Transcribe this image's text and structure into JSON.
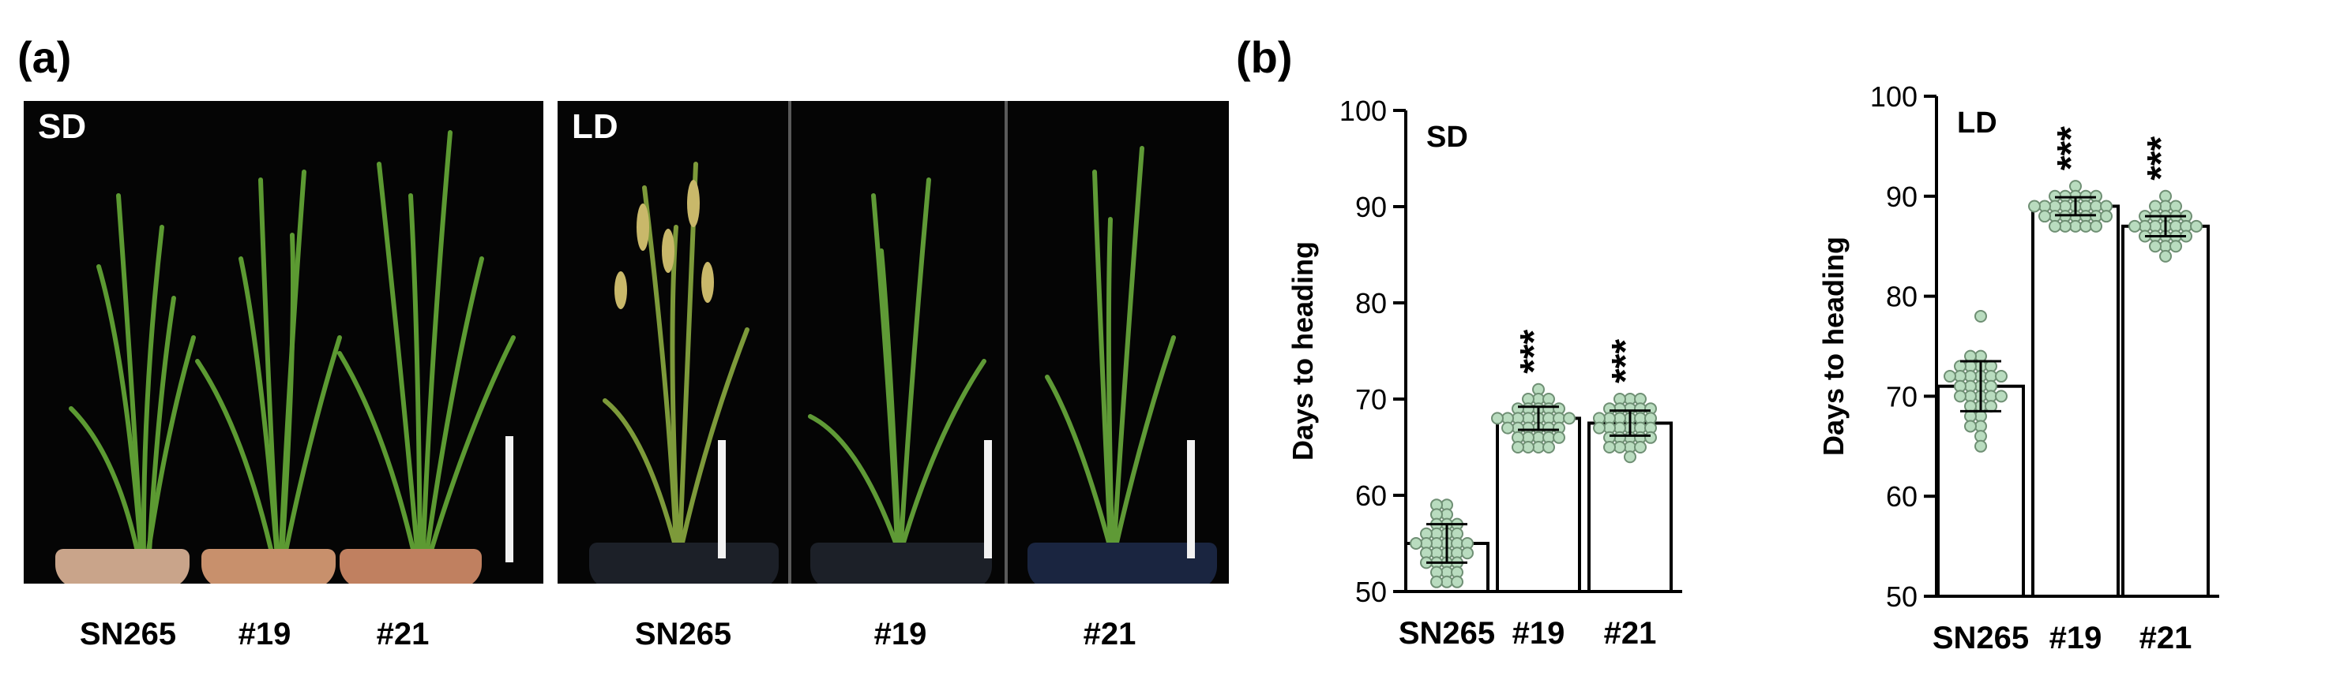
{
  "panel_a": {
    "label": "(a)",
    "photo_sd": {
      "tag": "SD",
      "labels": [
        "SN265",
        "#19",
        "#21"
      ]
    },
    "photo_ld": {
      "tag": "LD",
      "labels": [
        "SN265",
        "#19",
        "#21"
      ]
    }
  },
  "panel_b": {
    "label": "(b)"
  },
  "chart_data": [
    {
      "type": "bar",
      "inset_label": "SD",
      "ylabel": "Days to heading",
      "categories": [
        "SN265",
        "#19",
        "#21"
      ],
      "values": [
        55,
        68,
        67.5
      ],
      "error": [
        2,
        1.2,
        1.3
      ],
      "significance": [
        "",
        "***",
        "***"
      ],
      "ylim": [
        50,
        100
      ],
      "yticks": [
        50,
        60,
        70,
        80,
        90,
        100
      ],
      "points": [
        [
          59,
          59,
          58,
          58,
          57,
          57,
          57,
          56,
          56,
          56,
          56,
          55,
          55,
          55,
          55,
          55,
          55,
          54,
          54,
          54,
          54,
          54,
          53,
          53,
          53,
          53,
          52,
          52,
          52,
          51,
          51,
          51
        ],
        [
          71,
          70,
          70,
          70,
          69,
          69,
          69,
          69,
          69,
          68,
          68,
          68,
          68,
          68,
          68,
          68,
          68,
          67,
          67,
          67,
          67,
          67,
          67,
          66,
          66,
          66,
          66,
          66,
          65,
          65,
          65,
          65
        ],
        [
          70,
          70,
          70,
          69,
          69,
          69,
          69,
          69,
          68,
          68,
          68,
          68,
          68,
          68,
          67,
          67,
          67,
          67,
          67,
          67,
          66,
          66,
          66,
          66,
          66,
          65,
          65,
          65,
          65,
          64
        ]
      ],
      "colors": {
        "bar_fill": "#ffffff",
        "bar_stroke": "#000000",
        "point_fill": "#b9dcbf",
        "point_stroke": "#6f8f74"
      }
    },
    {
      "type": "bar",
      "inset_label": "LD",
      "ylabel": "Days to heading",
      "categories": [
        "SN265",
        "#19",
        "#21"
      ],
      "values": [
        71,
        89,
        87
      ],
      "error": [
        2.5,
        0.9,
        1.0
      ],
      "significance": [
        "",
        "***",
        "***"
      ],
      "ylim": [
        50,
        100
      ],
      "yticks": [
        50,
        60,
        70,
        80,
        90,
        100
      ],
      "points": [
        [
          78,
          74,
          74,
          73,
          73,
          73,
          73,
          72,
          72,
          72,
          72,
          72,
          72,
          71,
          71,
          71,
          71,
          70,
          70,
          70,
          70,
          70,
          69,
          69,
          69,
          68,
          68,
          67,
          67,
          66,
          65
        ],
        [
          91,
          90,
          90,
          90,
          90,
          90,
          89,
          89,
          89,
          89,
          89,
          89,
          89,
          89,
          88,
          88,
          88,
          88,
          88,
          88,
          88,
          87,
          87,
          87,
          87,
          87
        ],
        [
          90,
          89,
          89,
          89,
          88,
          88,
          88,
          88,
          88,
          87,
          87,
          87,
          87,
          87,
          87,
          87,
          86,
          86,
          86,
          86,
          86,
          85,
          85,
          85,
          84
        ]
      ],
      "colors": {
        "bar_fill": "#ffffff",
        "bar_stroke": "#000000",
        "point_fill": "#b9dcbf",
        "point_stroke": "#6f8f74"
      }
    }
  ]
}
